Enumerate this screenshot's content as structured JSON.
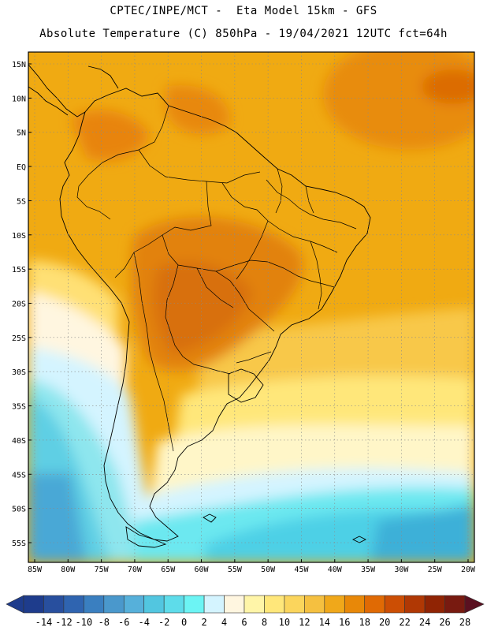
{
  "header": {
    "line1": "CPTEC/INPE/MCT -  Eta Model 15km - GFS",
    "line2": "Absolute Temperature (C) 850hPa - 19/04/2021 12UTC fct=64h"
  },
  "axes": {
    "lat_labels": [
      "15N",
      "10N",
      "5N",
      "EQ",
      "5S",
      "10S",
      "15S",
      "20S",
      "25S",
      "30S",
      "35S",
      "40S",
      "45S",
      "50S",
      "55S"
    ],
    "lat_values": [
      15,
      10,
      5,
      0,
      -5,
      -10,
      -15,
      -20,
      -25,
      -30,
      -35,
      -40,
      -45,
      -50,
      -55
    ],
    "lon_labels": [
      "85W",
      "80W",
      "75W",
      "70W",
      "65W",
      "60W",
      "55W",
      "50W",
      "45W",
      "40W",
      "35W",
      "30W",
      "25W",
      "20W"
    ],
    "lon_values": [
      -85,
      -80,
      -75,
      -70,
      -65,
      -60,
      -55,
      -50,
      -45,
      -40,
      -35,
      -30,
      -25,
      -20
    ]
  },
  "colorbar": {
    "labels": [
      "-14",
      "-12",
      "-10",
      "-8",
      "-6",
      "-4",
      "-2",
      "0",
      "2",
      "4",
      "6",
      "8",
      "10",
      "12",
      "14",
      "16",
      "18",
      "20",
      "22",
      "24",
      "26",
      "28"
    ],
    "colors": [
      "#1e3c8c",
      "#284f9e",
      "#2f64b0",
      "#3a7fc0",
      "#4a98cc",
      "#56b0da",
      "#52c6e0",
      "#5edcea",
      "#6cf4f4",
      "#d4f4ff",
      "#fff6e0",
      "#fff5a8",
      "#ffe77a",
      "#fbd55c",
      "#f5c040",
      "#f0a81a",
      "#e88808",
      "#e06a04",
      "#cc4e04",
      "#b03804",
      "#902404",
      "#781a10"
    ]
  },
  "regions": {
    "ocean": "Atlantic/Pacific temperature field",
    "continent": "South America"
  }
}
